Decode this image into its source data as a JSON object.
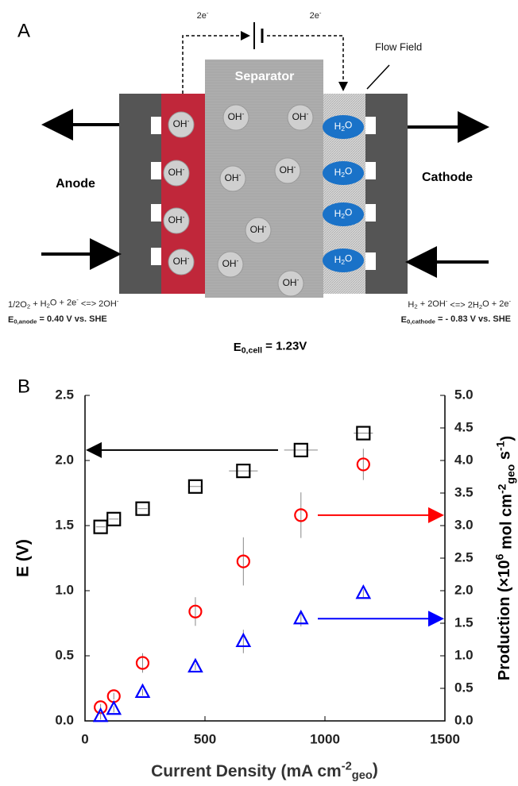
{
  "panel_a": {
    "label": "A",
    "electron_left": [
      "2e",
      {
        "sup": "-"
      }
    ],
    "electron_right": [
      "2e",
      {
        "sup": "-"
      }
    ],
    "flow_field": "Flow Field",
    "separator": "Separator",
    "anode": "Anode",
    "cathode": "Cathode",
    "anode_ions": [
      [
        "OH",
        {
          "sup": "-"
        }
      ],
      [
        "OH",
        {
          "sup": "-"
        }
      ],
      [
        "OH",
        {
          "sup": "-"
        }
      ],
      [
        "OH",
        {
          "sup": "-"
        }
      ]
    ],
    "separator_ions": [
      [
        "OH",
        {
          "sup": "-"
        }
      ],
      [
        "OH",
        {
          "sup": "-"
        }
      ],
      [
        "OH",
        {
          "sup": "-"
        }
      ],
      [
        "OH",
        {
          "sup": "-"
        }
      ],
      [
        "OH",
        {
          "sup": "-"
        }
      ],
      [
        "OH",
        {
          "sup": "-"
        }
      ],
      [
        "OH",
        {
          "sup": "-"
        }
      ]
    ],
    "cathode_molecules": [
      [
        "H",
        {
          "sub": "2"
        },
        "O"
      ],
      [
        "H",
        {
          "sub": "2"
        },
        "O"
      ],
      [
        "H",
        {
          "sub": "2"
        },
        "O"
      ],
      [
        "H",
        {
          "sub": "2"
        },
        "O"
      ]
    ],
    "anode_reaction": [
      "1/2O",
      {
        "sub": "2"
      },
      " + H",
      {
        "sub": "2"
      },
      "O + 2e",
      {
        "sup": "-"
      },
      " <=> 2OH",
      {
        "sup": "-"
      }
    ],
    "anode_potential": [
      "E",
      {
        "sub": "0,anode"
      },
      " = 0.40 V vs. SHE"
    ],
    "cathode_reaction": [
      "H",
      {
        "sub": "2"
      },
      " + 2OH",
      {
        "sup": "-"
      },
      " <=> 2H",
      {
        "sub": "2"
      },
      "O + 2e",
      {
        "sup": "-"
      }
    ],
    "cathode_potential": [
      "E",
      {
        "sub": "0,cathode"
      },
      " = - 0.83 V vs. SHE"
    ],
    "cell_potential": [
      "E",
      {
        "sub": "0,cell"
      },
      " = 1.23V"
    ]
  },
  "chart_data": {
    "type": "scatter",
    "panel_label": "B",
    "x_label": [
      "Current Density (mA cm",
      {
        "sup": "-2"
      },
      {
        "sub": "geo"
      },
      ")"
    ],
    "y_label": "E (V)",
    "y2_label": [
      "Production (×10",
      {
        "sup": "6"
      },
      " mol cm",
      {
        "sup": "-2"
      },
      {
        "sub": "geo"
      },
      " s",
      {
        "sup": "-1"
      },
      ")"
    ],
    "x": [
      65,
      120,
      240,
      460,
      660,
      900,
      1160
    ],
    "xlim": [
      0,
      1500
    ],
    "xticks": [
      0,
      500,
      1000,
      1500
    ],
    "ylim": [
      0,
      2.5
    ],
    "yticks": [
      {
        "value": 0,
        "label": "0.0"
      },
      0.5,
      {
        "value": 1,
        "label": "1.0"
      },
      1.5,
      {
        "value": 2,
        "label": "2.0"
      },
      2.5
    ],
    "y2lim": [
      0,
      5
    ],
    "y2ticks": [
      {
        "value": 0,
        "label": "0.0"
      },
      0.5,
      {
        "value": 1,
        "label": "1.0"
      },
      1.5,
      {
        "value": 2,
        "label": "2.0"
      },
      2.5,
      {
        "value": 3,
        "label": "3.0"
      },
      3.5,
      {
        "value": 4,
        "label": "4.0"
      },
      4.5,
      {
        "value": 5,
        "label": "5.0"
      }
    ],
    "series": [
      {
        "marker": "square",
        "color": "#000000",
        "values": [
          1.49,
          1.55,
          1.63,
          1.8,
          1.92,
          2.08,
          2.21
        ],
        "xerr": [
          20,
          20,
          20,
          30,
          60,
          70,
          40
        ]
      },
      {
        "marker": "circle",
        "color": "#ff0000",
        "axis": "y2",
        "values": [
          0.21,
          0.38,
          0.89,
          1.68,
          2.45,
          3.16,
          3.94
        ],
        "yerr": [
          0.05,
          0.05,
          0.15,
          0.22,
          0.37,
          0.35,
          0.24
        ]
      },
      {
        "marker": "triangle",
        "color": "#0000ff",
        "axis": "y2",
        "values": [
          0.07,
          0.18,
          0.44,
          0.83,
          1.22,
          1.57,
          1.96
        ],
        "yerr": [
          0.05,
          0.05,
          0.05,
          0.05,
          0.18,
          0.12,
          0.06
        ]
      }
    ]
  }
}
